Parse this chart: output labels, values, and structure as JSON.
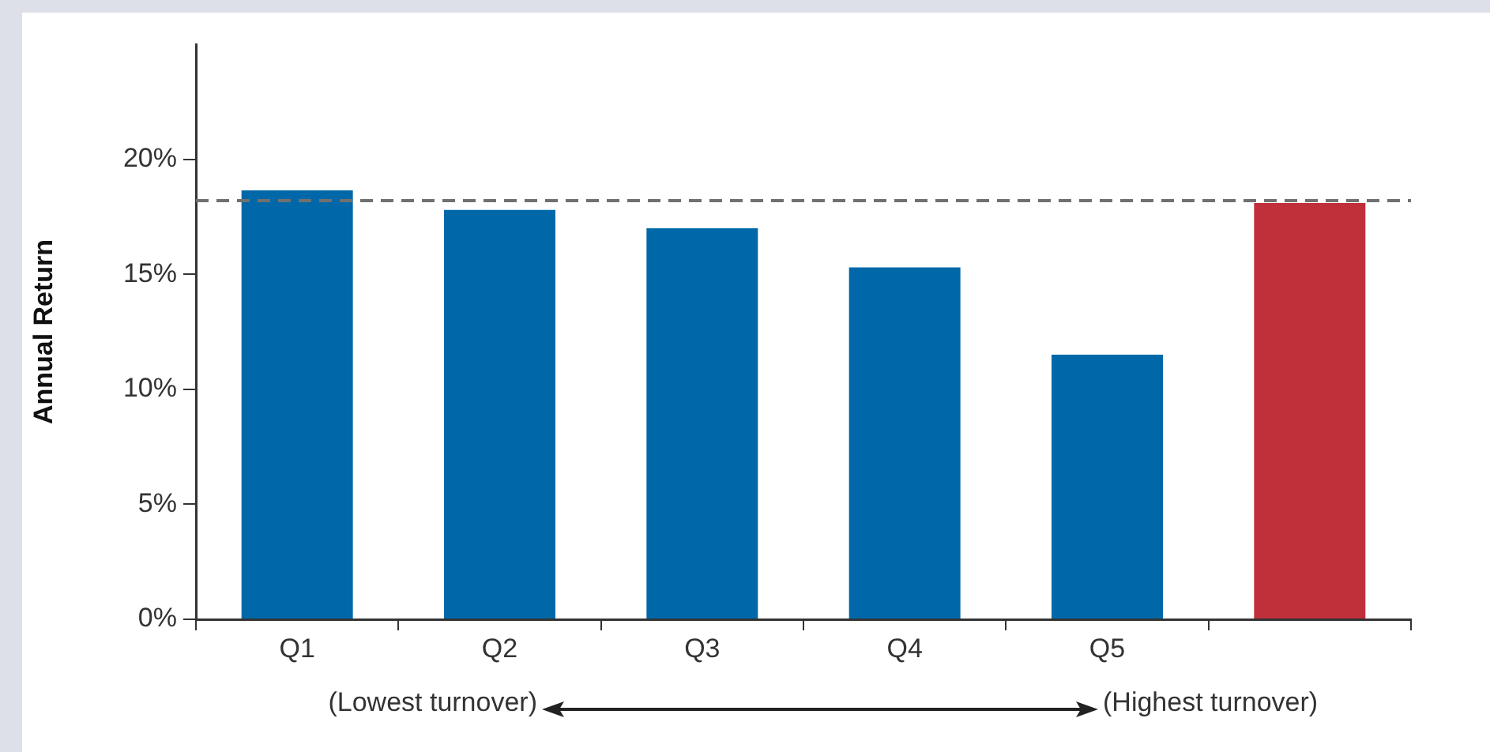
{
  "chart_data": {
    "type": "bar",
    "ylabel": "Annual Return",
    "categories": [
      "Q1",
      "Q2",
      "Q3",
      "Q4",
      "Q5",
      null
    ],
    "values": [
      18.65,
      17.8,
      17.0,
      15.3,
      11.5,
      18.1
    ],
    "colors": [
      "#0068a9",
      "#0068a9",
      "#0068a9",
      "#0068a9",
      "#0068a9",
      "#c0303a"
    ],
    "ylim": [
      0,
      25
    ],
    "yticks": [
      {
        "value": 0,
        "label": "0%"
      },
      {
        "value": 5,
        "label": "5%"
      },
      {
        "value": 10,
        "label": "10%"
      },
      {
        "value": 15,
        "label": "15%"
      },
      {
        "value": 20,
        "label": "20%"
      }
    ],
    "ref_lines": [
      {
        "axis": "y",
        "value": 18.2,
        "label": null,
        "color": "#707070",
        "line_style": "dashed"
      }
    ],
    "annotations": [
      "(Lowest turnover)",
      "(Highest turnover)"
    ]
  }
}
